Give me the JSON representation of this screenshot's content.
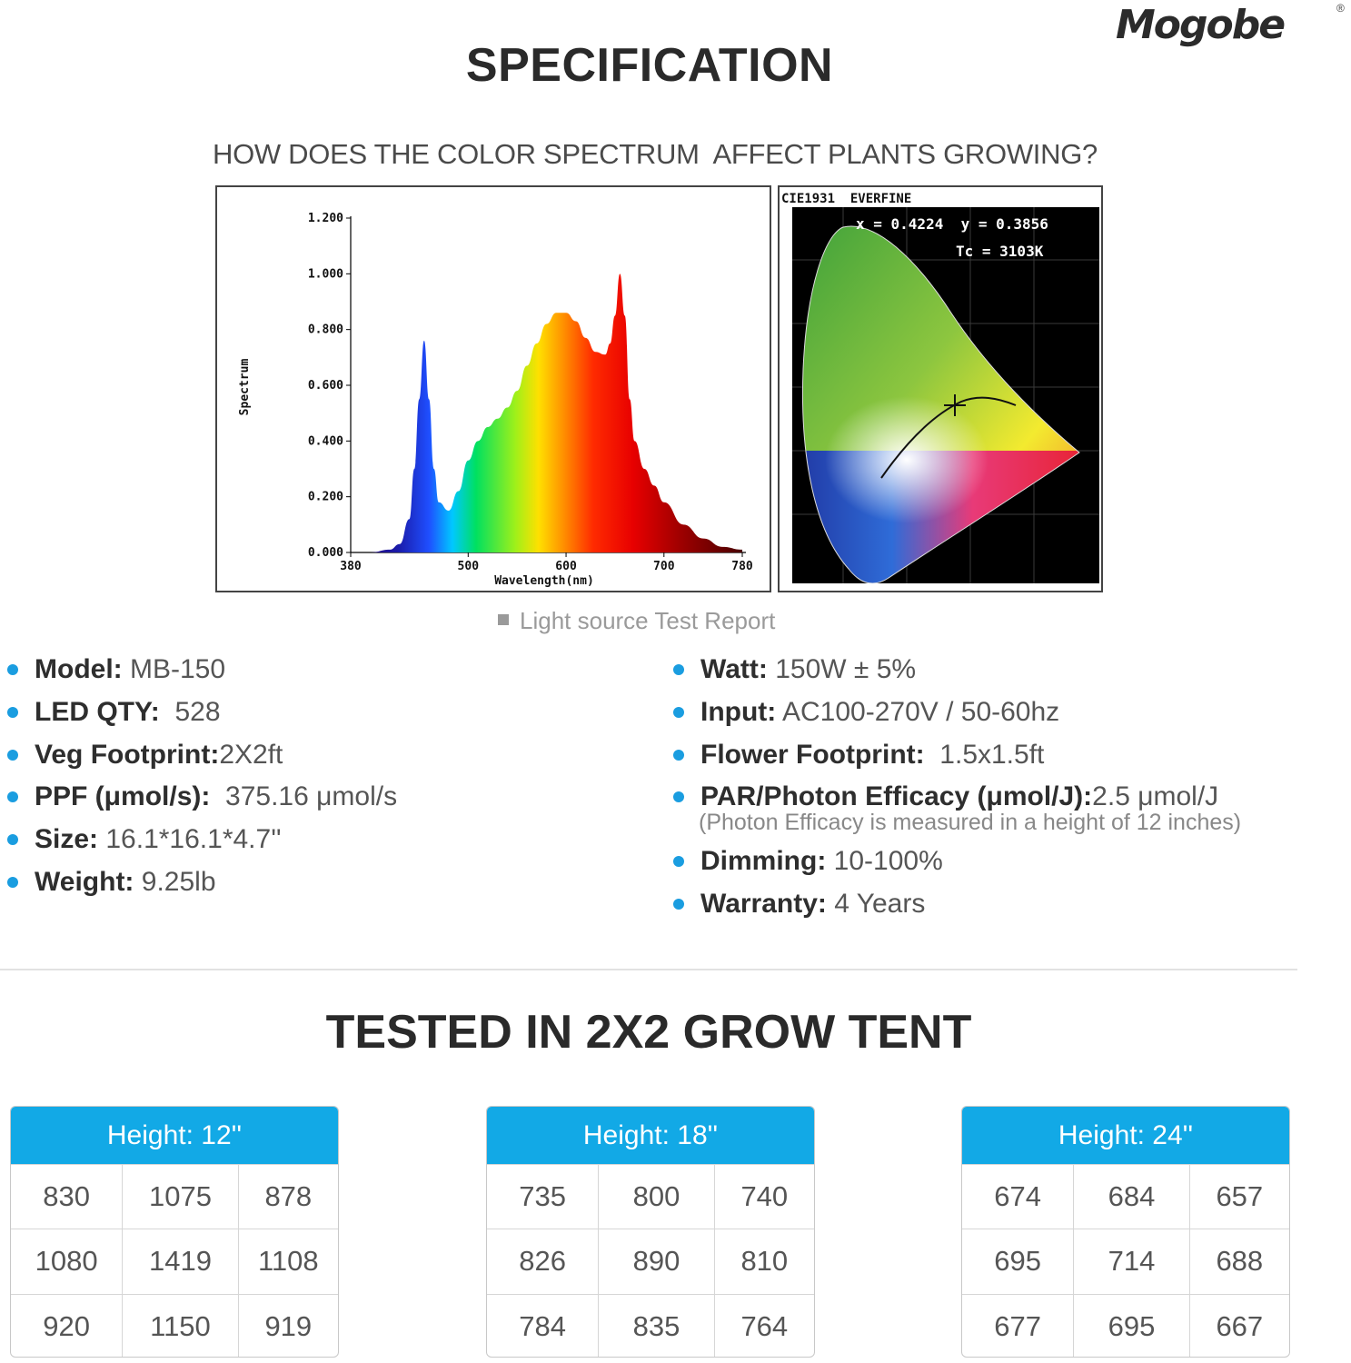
{
  "brand": {
    "name": "Mogobe",
    "registered": "®"
  },
  "title": "SPECIFICATION",
  "question": "HOW DOES THE COLOR SPECTRUM  AFFECT PLANTS GROWING?",
  "spectrum_chart": {
    "ylabel": "Spectrum",
    "xlabel": "Wavelength(nm)",
    "yticks": [
      "1.200",
      "1.000",
      "0.800",
      "0.600",
      "0.400",
      "0.200",
      "0.000"
    ],
    "xticks": [
      "380",
      "500",
      "600",
      "700",
      "780"
    ]
  },
  "chart_data": {
    "type": "area",
    "xlabel": "Wavelength(nm)",
    "ylabel": "Spectrum",
    "xlim": [
      380,
      780
    ],
    "ylim": [
      0,
      1.2
    ],
    "x": [
      380,
      400,
      420,
      430,
      440,
      445,
      450,
      455,
      460,
      465,
      470,
      480,
      490,
      500,
      510,
      520,
      530,
      540,
      550,
      560,
      570,
      580,
      590,
      600,
      610,
      620,
      630,
      640,
      645,
      650,
      655,
      660,
      665,
      670,
      680,
      690,
      700,
      720,
      740,
      760,
      780
    ],
    "values": [
      0.0,
      0.0,
      0.01,
      0.03,
      0.12,
      0.3,
      0.55,
      0.76,
      0.55,
      0.3,
      0.18,
      0.15,
      0.22,
      0.33,
      0.4,
      0.45,
      0.48,
      0.52,
      0.58,
      0.67,
      0.75,
      0.82,
      0.86,
      0.86,
      0.83,
      0.77,
      0.72,
      0.71,
      0.75,
      0.85,
      1.0,
      0.85,
      0.55,
      0.4,
      0.3,
      0.24,
      0.18,
      0.1,
      0.05,
      0.02,
      0.01
    ]
  },
  "cie": {
    "label": "CIE1931  EVERFINE",
    "coords": "x = 0.4224  y = 0.3856",
    "tc": "Tc = 3103K"
  },
  "caption": "Light source Test Report",
  "specs_left": [
    {
      "label": "Model:",
      "value": " MB-150"
    },
    {
      "label": "LED QTY:",
      "value": "  528"
    },
    {
      "label": "Veg Footprint:",
      "value": "2X2ft"
    },
    {
      "label": "PPF (μmol/s):",
      "value": "  375.16 μmol/s"
    },
    {
      "label": "Size:",
      "value": " 16.1*16.1*4.7''"
    },
    {
      "label": "Weight:",
      "value": " 9.25lb"
    }
  ],
  "specs_right": [
    {
      "label": "Watt:",
      "value": " 150W ± 5%"
    },
    {
      "label": "Input:",
      "value": " AC100-270V / 50-60hz"
    },
    {
      "label": "Flower Footprint:",
      "value": "  1.5x1.5ft"
    },
    {
      "label": "PAR/Photon Efficacy (μmol/J):",
      "value": "2.5 μmol/J"
    },
    {
      "label": "Dimming:",
      "value": " 10-100%"
    },
    {
      "label": "Warranty:",
      "value": " 4 Years"
    }
  ],
  "specs_note": "(Photon Efficacy is measured in a height of 12 inches)",
  "tent_title": "TESTED IN 2X2 GROW TENT",
  "tables": [
    {
      "header": "Height: 12''",
      "rows": [
        [
          "830",
          "1075",
          "878"
        ],
        [
          "1080",
          "1419",
          "1108"
        ],
        [
          "920",
          "1150",
          "919"
        ]
      ]
    },
    {
      "header": "Height: 18''",
      "rows": [
        [
          "735",
          "800",
          "740"
        ],
        [
          "826",
          "890",
          "810"
        ],
        [
          "784",
          "835",
          "764"
        ]
      ]
    },
    {
      "header": "Height: 24''",
      "rows": [
        [
          "674",
          "684",
          "657"
        ],
        [
          "695",
          "714",
          "688"
        ],
        [
          "677",
          "695",
          "667"
        ]
      ]
    }
  ],
  "colors": {
    "accent": "#12a9e6",
    "bullet": "#1a9de0"
  }
}
